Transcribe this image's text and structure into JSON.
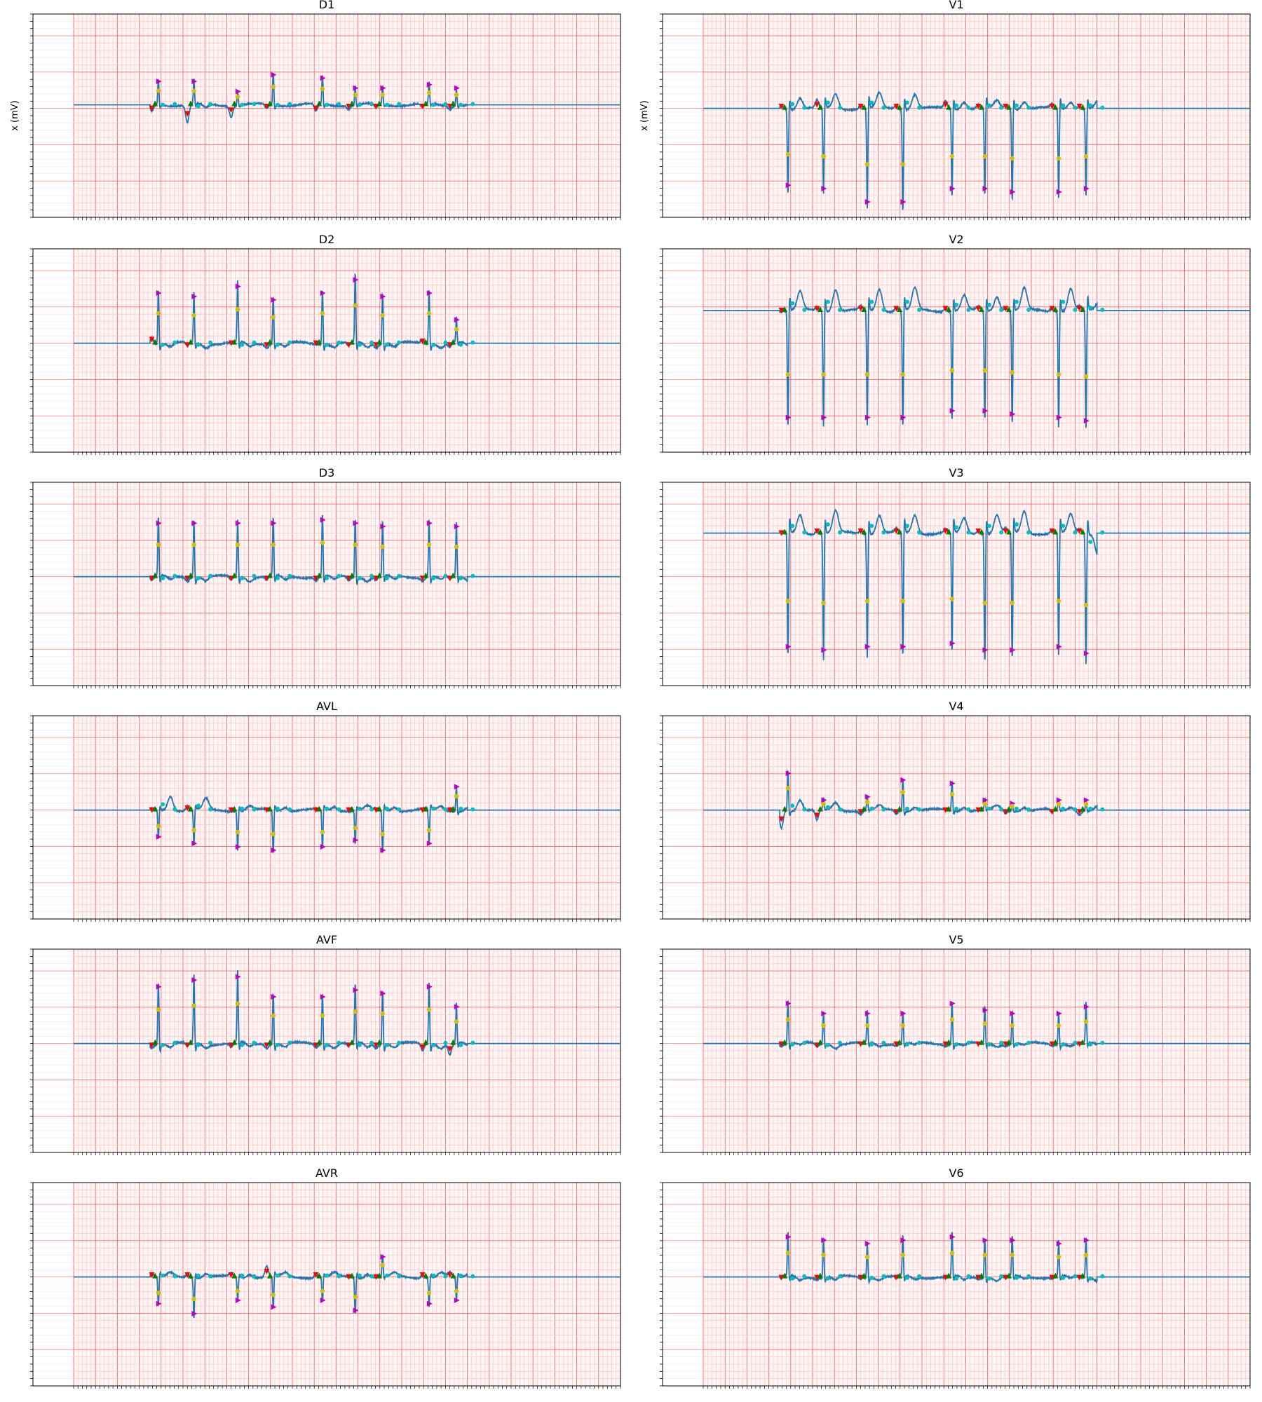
{
  "figure": {
    "ylabel_left": "x (mV)",
    "ylabel_right": "x (mV)",
    "colors": {
      "signal": "#1f77b4",
      "grid_major": "#ff6666",
      "grid_minor": "#ffc4c4",
      "background": "#fff5f5",
      "marker_onset": "#ff0000",
      "marker_offset": "#008000",
      "marker_peak": "#c000c0",
      "marker_r": "#d4c000",
      "marker_wave": "#00c0c0"
    }
  },
  "chart_data": [
    {
      "type": "line",
      "title": "D1",
      "baseline": 0.05,
      "ylim": [
        -1.5,
        1.3
      ],
      "beats": [
        {
          "t": 1.55,
          "sign": 1,
          "amp": 0.35,
          "pre": -0.1,
          "post": 0.0
        },
        {
          "t": 2.2,
          "sign": 1,
          "amp": 0.35,
          "pre": -0.25,
          "post": -0.05
        },
        {
          "t": 3.0,
          "sign": 1,
          "amp": 0.2,
          "pre": -0.15,
          "post": 0.0
        },
        {
          "t": 3.65,
          "sign": 1,
          "amp": 0.45,
          "pre": -0.05,
          "post": 0.0
        },
        {
          "t": 4.55,
          "sign": 1,
          "amp": 0.4,
          "pre": -0.1,
          "post": 0.0
        },
        {
          "t": 5.15,
          "sign": 1,
          "amp": 0.25,
          "pre": -0.05,
          "post": 0.0
        },
        {
          "t": 5.65,
          "sign": 1,
          "amp": 0.25,
          "pre": -0.05,
          "post": 0.0
        },
        {
          "t": 6.5,
          "sign": 1,
          "amp": 0.3,
          "pre": -0.05,
          "post": 0.0
        },
        {
          "t": 7.0,
          "sign": 1,
          "amp": 0.25,
          "pre": -0.05,
          "post": 0.0
        }
      ]
    },
    {
      "type": "line",
      "title": "V1",
      "baseline": 0.0,
      "ylim": [
        -1.5,
        1.3
      ],
      "beats": [
        {
          "t": 1.55,
          "sign": -1,
          "amp": 1.15,
          "pre": 0.05,
          "post": 0.15
        },
        {
          "t": 2.2,
          "sign": -1,
          "amp": 1.2,
          "pre": 0.1,
          "post": 0.2
        },
        {
          "t": 3.0,
          "sign": -1,
          "amp": 1.4,
          "pre": 0.05,
          "post": 0.2
        },
        {
          "t": 3.65,
          "sign": -1,
          "amp": 1.4,
          "pre": 0.05,
          "post": 0.2
        },
        {
          "t": 4.55,
          "sign": -1,
          "amp": 1.2,
          "pre": 0.1,
          "post": 0.1
        },
        {
          "t": 5.15,
          "sign": -1,
          "amp": 1.2,
          "pre": 0.05,
          "post": 0.1
        },
        {
          "t": 5.65,
          "sign": -1,
          "amp": 1.25,
          "pre": 0.05,
          "post": 0.1
        },
        {
          "t": 6.5,
          "sign": -1,
          "amp": 1.25,
          "pre": 0.05,
          "post": 0.1
        },
        {
          "t": 7.0,
          "sign": -1,
          "amp": 1.2,
          "pre": 0.05,
          "post": 0.1
        }
      ]
    },
    {
      "type": "line",
      "title": "D2",
      "baseline": 0.0,
      "ylim": [
        -1.5,
        1.3
      ],
      "beats": [
        {
          "t": 1.55,
          "sign": 1,
          "amp": 0.75,
          "pre": 0.1,
          "post": -0.05
        },
        {
          "t": 2.2,
          "sign": 1,
          "amp": 0.7,
          "pre": -0.05,
          "post": -0.05
        },
        {
          "t": 3.0,
          "sign": 1,
          "amp": 0.85,
          "pre": 0.0,
          "post": -0.05
        },
        {
          "t": 3.65,
          "sign": 1,
          "amp": 0.65,
          "pre": -0.05,
          "post": -0.05
        },
        {
          "t": 4.55,
          "sign": 1,
          "amp": 0.75,
          "pre": 0.0,
          "post": -0.05
        },
        {
          "t": 5.15,
          "sign": 1,
          "amp": 0.95,
          "pre": -0.05,
          "post": -0.05
        },
        {
          "t": 5.65,
          "sign": 1,
          "amp": 0.7,
          "pre": -0.05,
          "post": -0.05
        },
        {
          "t": 6.5,
          "sign": 1,
          "amp": 0.75,
          "pre": 0.05,
          "post": -0.05
        },
        {
          "t": 7.0,
          "sign": 1,
          "amp": 0.35,
          "pre": -0.05,
          "post": -0.05
        }
      ]
    },
    {
      "type": "line",
      "title": "V2",
      "baseline": 0.45,
      "ylim": [
        -1.5,
        1.3
      ],
      "beats": [
        {
          "t": 1.55,
          "sign": -1,
          "amp": 1.6,
          "pre": 0.0,
          "post": 0.25
        },
        {
          "t": 2.2,
          "sign": -1,
          "amp": 1.6,
          "pre": 0.05,
          "post": 0.3
        },
        {
          "t": 3.0,
          "sign": -1,
          "amp": 1.6,
          "pre": 0.05,
          "post": 0.3
        },
        {
          "t": 3.65,
          "sign": -1,
          "amp": 1.6,
          "pre": 0.05,
          "post": 0.3
        },
        {
          "t": 4.55,
          "sign": -1,
          "amp": 1.5,
          "pre": 0.05,
          "post": 0.2
        },
        {
          "t": 5.15,
          "sign": -1,
          "amp": 1.5,
          "pre": 0.05,
          "post": 0.2
        },
        {
          "t": 5.65,
          "sign": -1,
          "amp": 1.55,
          "pre": 0.05,
          "post": 0.3
        },
        {
          "t": 6.5,
          "sign": -1,
          "amp": 1.6,
          "pre": 0.05,
          "post": 0.3
        },
        {
          "t": 7.0,
          "sign": -1,
          "amp": 1.65,
          "pre": 0.05,
          "post": 0.1
        }
      ]
    },
    {
      "type": "line",
      "title": "D3",
      "baseline": 0.0,
      "ylim": [
        -1.5,
        1.3
      ],
      "beats": [
        {
          "t": 1.55,
          "sign": 1,
          "amp": 0.8,
          "pre": -0.05,
          "post": -0.05
        },
        {
          "t": 2.2,
          "sign": 1,
          "amp": 0.8,
          "pre": -0.05,
          "post": -0.05
        },
        {
          "t": 3.0,
          "sign": 1,
          "amp": 0.8,
          "pre": -0.05,
          "post": -0.05
        },
        {
          "t": 3.65,
          "sign": 1,
          "amp": 0.8,
          "pre": -0.05,
          "post": -0.05
        },
        {
          "t": 4.55,
          "sign": 1,
          "amp": 0.85,
          "pre": -0.05,
          "post": -0.05
        },
        {
          "t": 5.15,
          "sign": 1,
          "amp": 0.8,
          "pre": -0.05,
          "post": -0.05
        },
        {
          "t": 5.65,
          "sign": 1,
          "amp": 0.75,
          "pre": -0.05,
          "post": -0.05
        },
        {
          "t": 6.5,
          "sign": 1,
          "amp": 0.8,
          "pre": -0.05,
          "post": -0.05
        },
        {
          "t": 7.0,
          "sign": 1,
          "amp": 0.75,
          "pre": -0.05,
          "post": -0.05
        }
      ]
    },
    {
      "type": "line",
      "title": "V3",
      "baseline": 0.6,
      "ylim": [
        -1.5,
        1.3
      ],
      "beats": [
        {
          "t": 1.55,
          "sign": -1,
          "amp": 1.7,
          "pre": 0.0,
          "post": 0.25
        },
        {
          "t": 2.2,
          "sign": -1,
          "amp": 1.75,
          "pre": 0.05,
          "post": 0.3
        },
        {
          "t": 3.0,
          "sign": -1,
          "amp": 1.7,
          "pre": 0.05,
          "post": 0.25
        },
        {
          "t": 3.65,
          "sign": -1,
          "amp": 1.7,
          "pre": 0.05,
          "post": 0.25
        },
        {
          "t": 4.55,
          "sign": -1,
          "amp": 1.65,
          "pre": 0.05,
          "post": 0.2
        },
        {
          "t": 5.15,
          "sign": -1,
          "amp": 1.75,
          "pre": 0.05,
          "post": 0.25
        },
        {
          "t": 5.65,
          "sign": -1,
          "amp": 1.75,
          "pre": 0.05,
          "post": 0.3
        },
        {
          "t": 6.5,
          "sign": -1,
          "amp": 1.7,
          "pre": 0.05,
          "post": 0.25
        },
        {
          "t": 7.0,
          "sign": -1,
          "amp": 1.8,
          "pre": 0.05,
          "post": -0.3
        }
      ]
    },
    {
      "type": "line",
      "title": "AVL",
      "baseline": 0.0,
      "ylim": [
        -1.5,
        1.3
      ],
      "beats": [
        {
          "t": 1.55,
          "sign": -1,
          "amp": 0.4,
          "pre": 0.0,
          "post": 0.2
        },
        {
          "t": 2.2,
          "sign": -1,
          "amp": 0.5,
          "pre": 0.05,
          "post": 0.15
        },
        {
          "t": 3.0,
          "sign": -1,
          "amp": 0.55,
          "pre": 0.0,
          "post": 0.05
        },
        {
          "t": 3.65,
          "sign": -1,
          "amp": 0.6,
          "pre": 0.0,
          "post": 0.05
        },
        {
          "t": 4.55,
          "sign": -1,
          "amp": 0.55,
          "pre": 0.0,
          "post": 0.05
        },
        {
          "t": 5.15,
          "sign": -1,
          "amp": 0.45,
          "pre": 0.0,
          "post": 0.05
        },
        {
          "t": 5.65,
          "sign": -1,
          "amp": 0.6,
          "pre": 0.0,
          "post": 0.05
        },
        {
          "t": 6.5,
          "sign": -1,
          "amp": 0.5,
          "pre": 0.0,
          "post": 0.05
        },
        {
          "t": 7.0,
          "sign": 1,
          "amp": 0.35,
          "pre": 0.0,
          "post": 0.05
        }
      ]
    },
    {
      "type": "line",
      "title": "V4",
      "baseline": 0.0,
      "ylim": [
        -1.5,
        1.3
      ],
      "beats": [
        {
          "t": 1.55,
          "sign": 1,
          "amp": 0.55,
          "pre": -0.25,
          "post": 0.15
        },
        {
          "t": 2.2,
          "sign": 1,
          "amp": 0.15,
          "pre": -0.15,
          "post": 0.1
        },
        {
          "t": 3.0,
          "sign": 1,
          "amp": 0.2,
          "pre": -0.05,
          "post": 0.05
        },
        {
          "t": 3.65,
          "sign": 1,
          "amp": 0.45,
          "pre": -0.05,
          "post": 0.05
        },
        {
          "t": 4.55,
          "sign": 1,
          "amp": 0.4,
          "pre": 0.0,
          "post": 0.05
        },
        {
          "t": 5.15,
          "sign": 1,
          "amp": 0.15,
          "pre": 0.0,
          "post": 0.05
        },
        {
          "t": 5.65,
          "sign": 1,
          "amp": 0.1,
          "pre": -0.05,
          "post": 0.05
        },
        {
          "t": 6.5,
          "sign": 1,
          "amp": 0.15,
          "pre": -0.05,
          "post": 0.05
        },
        {
          "t": 7.0,
          "sign": 1,
          "amp": 0.15,
          "pre": -0.05,
          "post": 0.05
        }
      ]
    },
    {
      "type": "line",
      "title": "AVF",
      "baseline": 0.0,
      "ylim": [
        -1.5,
        1.3
      ],
      "beats": [
        {
          "t": 1.55,
          "sign": 1,
          "amp": 0.85,
          "pre": -0.05,
          "post": -0.05
        },
        {
          "t": 2.2,
          "sign": 1,
          "amp": 0.95,
          "pre": -0.05,
          "post": -0.05
        },
        {
          "t": 3.0,
          "sign": 1,
          "amp": 1.0,
          "pre": -0.05,
          "post": -0.05
        },
        {
          "t": 3.65,
          "sign": 1,
          "amp": 0.7,
          "pre": -0.05,
          "post": -0.05
        },
        {
          "t": 4.55,
          "sign": 1,
          "amp": 0.7,
          "pre": -0.05,
          "post": -0.05
        },
        {
          "t": 5.15,
          "sign": 1,
          "amp": 0.8,
          "pre": -0.05,
          "post": -0.05
        },
        {
          "t": 5.65,
          "sign": 1,
          "amp": 0.75,
          "pre": -0.05,
          "post": -0.05
        },
        {
          "t": 6.5,
          "sign": 1,
          "amp": 0.85,
          "pre": -0.1,
          "post": -0.05
        },
        {
          "t": 7.0,
          "sign": 1,
          "amp": 0.55,
          "pre": -0.15,
          "post": -0.05
        }
      ]
    },
    {
      "type": "line",
      "title": "V5",
      "baseline": 0.0,
      "ylim": [
        -1.5,
        1.3
      ],
      "beats": [
        {
          "t": 1.55,
          "sign": 1,
          "amp": 0.6,
          "pre": -0.02,
          "post": -0.03
        },
        {
          "t": 2.2,
          "sign": 1,
          "amp": 0.45,
          "pre": -0.05,
          "post": -0.05
        },
        {
          "t": 3.0,
          "sign": 1,
          "amp": 0.45,
          "pre": -0.02,
          "post": -0.03
        },
        {
          "t": 3.65,
          "sign": 1,
          "amp": 0.45,
          "pre": -0.02,
          "post": -0.03
        },
        {
          "t": 4.55,
          "sign": 1,
          "amp": 0.6,
          "pre": -0.02,
          "post": -0.03
        },
        {
          "t": 5.15,
          "sign": 1,
          "amp": 0.5,
          "pre": -0.02,
          "post": -0.03
        },
        {
          "t": 5.65,
          "sign": 1,
          "amp": 0.45,
          "pre": -0.02,
          "post": -0.03
        },
        {
          "t": 6.5,
          "sign": 1,
          "amp": 0.45,
          "pre": -0.02,
          "post": -0.03
        },
        {
          "t": 7.0,
          "sign": 1,
          "amp": 0.55,
          "pre": -0.02,
          "post": -0.03
        }
      ]
    },
    {
      "type": "line",
      "title": "AVR",
      "baseline": 0.0,
      "ylim": [
        -1.5,
        1.3
      ],
      "beats": [
        {
          "t": 1.55,
          "sign": -1,
          "amp": 0.4,
          "pre": 0.05,
          "post": 0.05
        },
        {
          "t": 2.2,
          "sign": -1,
          "amp": 0.55,
          "pre": 0.05,
          "post": 0.05
        },
        {
          "t": 3.0,
          "sign": -1,
          "amp": 0.35,
          "pre": 0.05,
          "post": 0.05
        },
        {
          "t": 3.65,
          "sign": -1,
          "amp": 0.45,
          "pre": 0.15,
          "post": 0.05
        },
        {
          "t": 4.55,
          "sign": -1,
          "amp": 0.35,
          "pre": 0.05,
          "post": 0.05
        },
        {
          "t": 5.15,
          "sign": -1,
          "amp": 0.5,
          "pre": 0.0,
          "post": 0.05
        },
        {
          "t": 5.65,
          "sign": 1,
          "amp": 0.3,
          "pre": 0.0,
          "post": 0.05
        },
        {
          "t": 6.5,
          "sign": -1,
          "amp": 0.4,
          "pre": 0.05,
          "post": 0.05
        },
        {
          "t": 7.0,
          "sign": -1,
          "amp": 0.35,
          "pre": 0.05,
          "post": 0.05
        }
      ]
    },
    {
      "type": "line",
      "title": "V6",
      "baseline": 0.0,
      "ylim": [
        -1.5,
        1.3
      ],
      "beats": [
        {
          "t": 1.55,
          "sign": 1,
          "amp": 0.6,
          "pre": -0.02,
          "post": -0.05
        },
        {
          "t": 2.2,
          "sign": 1,
          "amp": 0.55,
          "pre": -0.02,
          "post": -0.05
        },
        {
          "t": 3.0,
          "sign": 1,
          "amp": 0.5,
          "pre": -0.02,
          "post": -0.03
        },
        {
          "t": 3.65,
          "sign": 1,
          "amp": 0.55,
          "pre": -0.02,
          "post": -0.03
        },
        {
          "t": 4.55,
          "sign": 1,
          "amp": 0.6,
          "pre": -0.02,
          "post": -0.05
        },
        {
          "t": 5.15,
          "sign": 1,
          "amp": 0.55,
          "pre": -0.02,
          "post": -0.05
        },
        {
          "t": 5.65,
          "sign": 1,
          "amp": 0.55,
          "pre": -0.02,
          "post": -0.03
        },
        {
          "t": 6.5,
          "sign": 1,
          "amp": 0.5,
          "pre": -0.02,
          "post": -0.03
        },
        {
          "t": 7.0,
          "sign": 1,
          "amp": 0.55,
          "pre": -0.02,
          "post": -0.05
        }
      ]
    }
  ]
}
